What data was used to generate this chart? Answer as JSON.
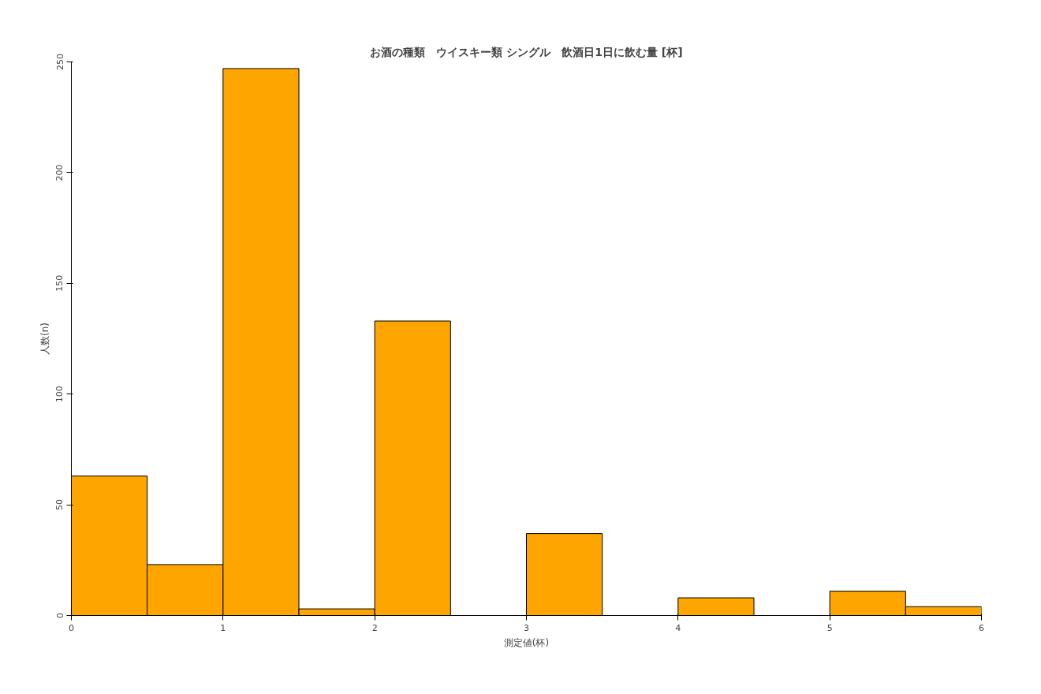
{
  "chart_data": {
    "type": "histogram",
    "title": "お酒の種類　ウイスキー類 シングル　飲酒日1日に飲む量 [杯]",
    "xlabel": "測定値(杯)",
    "ylabel": "人数(n)",
    "bins": [
      0,
      0.5,
      1,
      1.5,
      2,
      2.5,
      3,
      3.5,
      4,
      4.5,
      5,
      5.5,
      6
    ],
    "values": [
      63,
      23,
      247,
      3,
      133,
      0,
      37,
      0,
      8,
      0,
      11,
      4
    ],
    "color": "#ffa500",
    "xlim": [
      0,
      6
    ],
    "ylim": [
      0,
      250
    ],
    "xticks": [
      0,
      1,
      2,
      3,
      4,
      5,
      6
    ],
    "yticks": [
      0,
      50,
      100,
      150,
      200,
      250
    ],
    "grid": false
  }
}
